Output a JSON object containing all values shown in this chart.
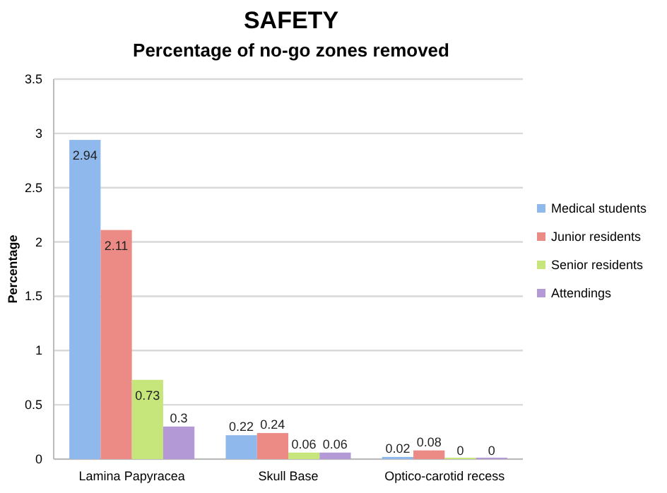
{
  "chart_data": {
    "type": "bar",
    "title": "SAFETY",
    "subtitle": "Percentage of no-go zones removed",
    "ylabel": "Percentage",
    "categories": [
      "Lamina Papyracea",
      "Skull Base",
      "Optico-carotid recess"
    ],
    "series": [
      {
        "name": "Medical students",
        "color": "#8fb8ec",
        "values": [
          2.94,
          0.22,
          0.02
        ]
      },
      {
        "name": "Junior residents",
        "color": "#ec8a86",
        "values": [
          2.11,
          0.24,
          0.08
        ]
      },
      {
        "name": "Senior residents",
        "color": "#c6e57a",
        "values": [
          0.73,
          0.06,
          0
        ]
      },
      {
        "name": "Attendings",
        "color": "#b39ad6",
        "values": [
          0.3,
          0.06,
          0
        ]
      }
    ],
    "ylim": [
      0,
      3.5
    ],
    "yticks": [
      0,
      0.5,
      1,
      1.5,
      2,
      2.5,
      3,
      3.5
    ],
    "grid": "y",
    "legend": "right",
    "data_labels": true
  }
}
